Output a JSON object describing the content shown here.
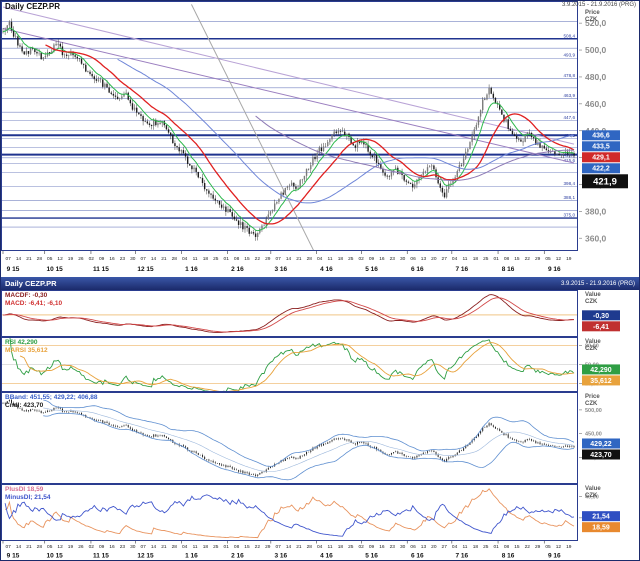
{
  "panel1": {
    "title": "Daily CEZP.PR",
    "range": "3.9.2015 - 21.9.2016 (PRG)",
    "axis_title": [
      "Price",
      "CZK"
    ]
  },
  "panel2_header": {
    "title": "Daily CEZP.PR",
    "range": "3.9.2015 - 21.9.2016 (PRG)"
  },
  "indicators": {
    "macd": {
      "line1": "MACDF: -0,30",
      "line1_color": "#8b2020",
      "line2": "MACD: -6,41; -6,10",
      "line2_color": "#d03030",
      "axis_title": [
        "Value",
        "CZK"
      ]
    },
    "rsi": {
      "line1": "RSI 42,290",
      "line1_color": "#2f9e44",
      "line2": "MARSI 35,612",
      "line2_color": "#e8a23c",
      "axis_title": [
        "Value",
        "CZK"
      ]
    },
    "bband": {
      "line1": "BBand: 451,55; 429,22; 406,88",
      "line1_color": "#3a5fc8",
      "line2": "Cndl: 423,70",
      "line2_color": "#1a1a1a",
      "axis_title": [
        "Price",
        "CZK"
      ]
    },
    "di": {
      "line1": "PlusDI 18,59",
      "line1_color": "#d87093",
      "line2": "MinusDI; 21,54",
      "line2_color": "#3f55cc",
      "axis_title": [
        "Value",
        "CZK"
      ]
    }
  },
  "chart_data": {
    "type": "candlestick",
    "symbol": "CEZP.PR",
    "timeframe": "Daily",
    "period": "3.9.2015 - 21.9.2016 (PRG)",
    "main": {
      "price_min": 352,
      "price_max": 535,
      "ticks": [
        {
          "v": 520,
          "label": "520,0"
        },
        {
          "v": 500,
          "label": "500,0"
        },
        {
          "v": 480,
          "label": "480,0"
        },
        {
          "v": 460,
          "label": "460,0"
        },
        {
          "v": 440,
          "label": "440,0"
        },
        {
          "v": 420,
          "label": "420,0"
        },
        {
          "v": 400,
          "label": "400,0"
        },
        {
          "v": 380,
          "label": "380,0"
        },
        {
          "v": 360,
          "label": "360,0"
        }
      ],
      "levels": [
        {
          "p": 521.2
        },
        {
          "p": 508.4,
          "label": "508,4",
          "w": 1.4
        },
        {
          "p": 501.4
        },
        {
          "p": 493.9,
          "label": "493,9"
        },
        {
          "p": 478.8,
          "label": "478,8"
        },
        {
          "p": 471.9
        },
        {
          "p": 463.9,
          "label": "463,9"
        },
        {
          "p": 453.8
        },
        {
          "p": 447.6,
          "label": "447,6"
        },
        {
          "p": 440.1
        },
        {
          "p": 436.6,
          "w": 2
        },
        {
          "p": 434.2,
          "label": "434,2"
        },
        {
          "p": 427.6
        },
        {
          "p": 422.2,
          "w": 2
        },
        {
          "p": 419.8,
          "label": "419,8"
        },
        {
          "p": 415.6,
          "label": "415,6"
        },
        {
          "p": 409.0
        },
        {
          "p": 398.4,
          "label": "398,4"
        },
        {
          "p": 388.1,
          "label": "388,1"
        },
        {
          "p": 380.7
        },
        {
          "p": 375.0,
          "label": "375,0",
          "w": 1.4
        },
        {
          "p": 368.3
        }
      ],
      "diagonals": [
        {
          "t1": 0,
          "p1": 516,
          "t2": 1,
          "p2": 416,
          "color": "#9b7fc0"
        },
        {
          "t1": 0,
          "p1": 532,
          "t2": 1,
          "p2": 430,
          "color": "#b9a3d6"
        },
        {
          "t1": 0.33,
          "p1": 534,
          "t2": 0.545,
          "p2": 350,
          "color": "#a8a8a8"
        }
      ],
      "mas": [
        {
          "kind": "ema",
          "period": 8,
          "color": "#2db84b",
          "width": 1
        },
        {
          "kind": "sma",
          "period": 21,
          "color": "#e02020",
          "width": 1.3
        },
        {
          "kind": "sma",
          "period": 55,
          "color": "#6f86d8",
          "width": 1
        },
        {
          "kind": "sma",
          "period": 120,
          "color": "#8f7bb5",
          "width": 1
        }
      ],
      "badges": [
        {
          "value": 436.6,
          "text": "436,6",
          "bg": "#2f66c2"
        },
        {
          "value": 433.5,
          "text": "433,5",
          "bg": "#2f66c2"
        },
        {
          "value": 429.1,
          "text": "429,1",
          "bg": "#d02a2a"
        },
        {
          "value": 422.2,
          "text": "422,2",
          "bg": "#2f66c2"
        },
        {
          "value": 421.9,
          "text": "421,9",
          "bg": "#101010",
          "big": true
        }
      ]
    },
    "candles": {
      "count": 270,
      "seed": 11,
      "anchors": [
        [
          0,
          513
        ],
        [
          0.012,
          520
        ],
        [
          0.025,
          505
        ],
        [
          0.04,
          497
        ],
        [
          0.052,
          503
        ],
        [
          0.065,
          495
        ],
        [
          0.08,
          499
        ],
        [
          0.095,
          504
        ],
        [
          0.11,
          494
        ],
        [
          0.125,
          497
        ],
        [
          0.14,
          488
        ],
        [
          0.155,
          481
        ],
        [
          0.17,
          477
        ],
        [
          0.185,
          470
        ],
        [
          0.2,
          463
        ],
        [
          0.215,
          468
        ],
        [
          0.23,
          455
        ],
        [
          0.245,
          449
        ],
        [
          0.26,
          445
        ],
        [
          0.275,
          448
        ],
        [
          0.29,
          437
        ],
        [
          0.305,
          427
        ],
        [
          0.32,
          419
        ],
        [
          0.335,
          410
        ],
        [
          0.35,
          400
        ],
        [
          0.365,
          391
        ],
        [
          0.38,
          384
        ],
        [
          0.395,
          379
        ],
        [
          0.41,
          373
        ],
        [
          0.425,
          366
        ],
        [
          0.44,
          362
        ],
        [
          0.455,
          368
        ],
        [
          0.47,
          381
        ],
        [
          0.485,
          391
        ],
        [
          0.5,
          401
        ],
        [
          0.515,
          397
        ],
        [
          0.53,
          409
        ],
        [
          0.545,
          420
        ],
        [
          0.555,
          426
        ],
        [
          0.57,
          431
        ],
        [
          0.585,
          441
        ],
        [
          0.6,
          437
        ],
        [
          0.615,
          429
        ],
        [
          0.63,
          433
        ],
        [
          0.645,
          423
        ],
        [
          0.66,
          413
        ],
        [
          0.675,
          406
        ],
        [
          0.69,
          411
        ],
        [
          0.705,
          403
        ],
        [
          0.72,
          399
        ],
        [
          0.735,
          410
        ],
        [
          0.75,
          417
        ],
        [
          0.762,
          403
        ],
        [
          0.772,
          389
        ],
        [
          0.78,
          399
        ],
        [
          0.795,
          409
        ],
        [
          0.81,
          423
        ],
        [
          0.825,
          441
        ],
        [
          0.84,
          462
        ],
        [
          0.85,
          471
        ],
        [
          0.862,
          463
        ],
        [
          0.875,
          450
        ],
        [
          0.89,
          440
        ],
        [
          0.905,
          432
        ],
        [
          0.92,
          437
        ],
        [
          0.935,
          430
        ],
        [
          0.95,
          426
        ],
        [
          0.965,
          422
        ],
        [
          0.98,
          425
        ],
        [
          1,
          421.9
        ]
      ]
    },
    "axis": {
      "days": [
        "07",
        "14",
        "21",
        "28",
        "05",
        "12",
        "19",
        "26",
        "02",
        "09",
        "16",
        "23",
        "30",
        "07",
        "14",
        "21",
        "28",
        "04",
        "11",
        "18",
        "25",
        "01",
        "08",
        "15",
        "22",
        "29",
        "07",
        "14",
        "21",
        "28",
        "04",
        "11",
        "18",
        "25",
        "02",
        "09",
        "16",
        "23",
        "30",
        "06",
        "13",
        "20",
        "27",
        "04",
        "11",
        "18",
        "25",
        "01",
        "08",
        "15",
        "22",
        "29",
        "05",
        "12",
        "19"
      ],
      "months": [
        {
          "label": "9 15",
          "t": 0.0
        },
        {
          "label": "10 15",
          "t": 0.073
        },
        {
          "label": "11 15",
          "t": 0.154
        },
        {
          "label": "12 15",
          "t": 0.232
        },
        {
          "label": "1 16",
          "t": 0.3125
        },
        {
          "label": "2 16",
          "t": 0.393
        },
        {
          "label": "3 16",
          "t": 0.469
        },
        {
          "label": "4 16",
          "t": 0.549
        },
        {
          "label": "5 16",
          "t": 0.628
        },
        {
          "label": "6 16",
          "t": 0.708
        },
        {
          "label": "7 16",
          "t": 0.786
        },
        {
          "label": "8 16",
          "t": 0.867
        },
        {
          "label": "9 16",
          "t": 0.948
        }
      ]
    },
    "macd": {
      "values_text": {
        "macdf": "-0,30",
        "macd": "-6,41",
        "signal": "-6,10"
      },
      "badges": [
        {
          "value": -0.3,
          "text": "-0,30",
          "bg": "#1e3a8f"
        },
        {
          "value": -6.41,
          "text": "-6,41",
          "bg": "#c03030"
        }
      ]
    },
    "rsi": {
      "values_text": {
        "rsi": "42,290",
        "marsi": "35,612"
      },
      "lines": [
        {
          "v": 80,
          "color": "#e8a23c"
        },
        {
          "v": 50,
          "color": "#c0c0c0"
        },
        {
          "v": 20,
          "color": "#e8a23c"
        }
      ],
      "ticks": [
        {
          "v": 80,
          "label": "80,00"
        },
        {
          "v": 50,
          "label": "50,00"
        },
        {
          "v": 20,
          "label": "20,00"
        }
      ],
      "badges": [
        {
          "value": 42.29,
          "text": "42,290",
          "bg": "#2f9e44"
        },
        {
          "value": 35.612,
          "text": "35,612",
          "bg": "#e8a23c"
        }
      ]
    },
    "bband": {
      "values_text": {
        "upper": "451,55",
        "middle": "429,22",
        "lower": "406,88",
        "candle": "423,70"
      },
      "ticks": [
        {
          "v": 500,
          "label": "500,00"
        },
        {
          "v": 450,
          "label": "450,00"
        },
        {
          "v": 400,
          "label": "400,00"
        }
      ],
      "badges": [
        {
          "value": 429.22,
          "text": "429,22",
          "bg": "#2f66c2"
        },
        {
          "value": 423.7,
          "text": "423,70",
          "bg": "#101010"
        }
      ]
    },
    "di": {
      "values_text": {
        "plus_di": "18,59",
        "minus_di": "21,54"
      },
      "ticks": [
        {
          "v": 40,
          "label": "40,00"
        },
        {
          "v": 20,
          "label": "20,00"
        }
      ],
      "badges": [
        {
          "value": 21.54,
          "text": "21,54",
          "bg": "#2f4fc2"
        },
        {
          "value": 18.59,
          "text": "18,59",
          "bg": "#e8892f"
        }
      ]
    }
  }
}
